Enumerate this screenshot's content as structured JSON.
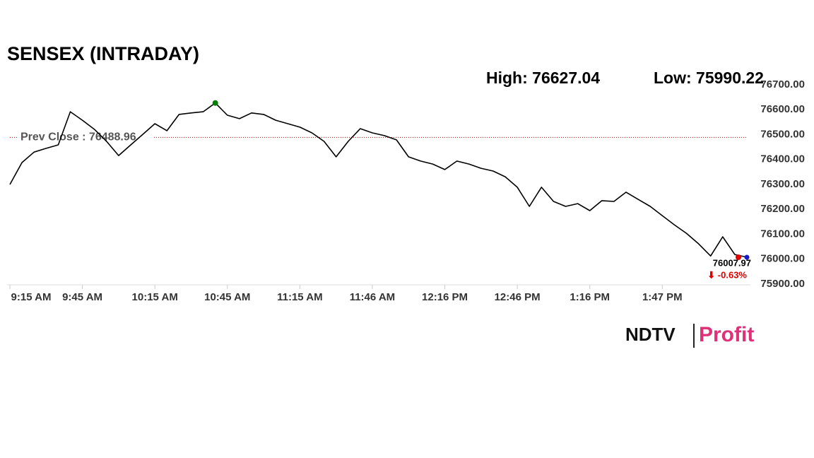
{
  "chart_data": {
    "type": "line",
    "title": "SENSEX (INTRADAY)",
    "high_label": "High: 76627.04",
    "low_label": "Low: 75990.22",
    "prev_close": 76488.96,
    "prev_close_label": "Prev Close : 76488.96",
    "high_value": 76627.04,
    "last_value": 76007.97,
    "last_value_label": "76007.97",
    "change_label": "⬇ -0.63%",
    "logo_left": "NDTV",
    "logo_right": "Profit",
    "categories": [
      "9:15 AM",
      null,
      null,
      null,
      null,
      null,
      "9:45 AM",
      null,
      null,
      null,
      null,
      null,
      "10:15 AM",
      null,
      null,
      null,
      null,
      null,
      "10:45 AM",
      null,
      null,
      null,
      null,
      null,
      "11:15 AM",
      null,
      null,
      null,
      null,
      null,
      "11:46 AM",
      null,
      null,
      null,
      null,
      null,
      "12:16 PM",
      null,
      null,
      null,
      null,
      null,
      "12:46 PM",
      null,
      null,
      null,
      null,
      null,
      "1:16 PM",
      null,
      null,
      null,
      null,
      null,
      "1:47 PM",
      null,
      null,
      null,
      null,
      null,
      null,
      null
    ],
    "series": [
      {
        "color": "#000000",
        "values": [
          76300,
          76388,
          76430,
          76445,
          76459,
          76592,
          76558,
          76521,
          76473,
          76416,
          76459,
          76501,
          76544,
          76516,
          76581,
          76587,
          76592,
          76627.04,
          76578,
          76564,
          76587,
          76581,
          76558,
          76544,
          76530,
          76507,
          76473,
          76411,
          76473,
          76524,
          76507,
          76496,
          76479,
          76411,
          76394,
          76382,
          76360,
          76394,
          76382,
          76365,
          76354,
          76331,
          76289,
          76212,
          76289,
          76232,
          76212,
          76223,
          76195,
          76235,
          76232,
          76269,
          76240,
          76212,
          76175,
          76138,
          76104,
          76062,
          76013,
          76090,
          76019,
          76007.97
        ]
      }
    ],
    "ylim": [
      75900,
      76700
    ],
    "yticks": [
      {
        "value": 75900,
        "label": "75900.00"
      },
      {
        "value": 76000,
        "label": "76000.00"
      },
      {
        "value": 76100,
        "label": "76100.00"
      },
      {
        "value": 76200,
        "label": "76200.00"
      },
      {
        "value": 76300,
        "label": "76300.00"
      },
      {
        "value": 76400,
        "label": "76400.00"
      },
      {
        "value": 76500,
        "label": "76500.00"
      },
      {
        "value": 76600,
        "label": "76600.00"
      },
      {
        "value": 76700,
        "label": "76700.00"
      }
    ],
    "high_color": "#008000",
    "last_color": "#e00000",
    "grid": false
  }
}
